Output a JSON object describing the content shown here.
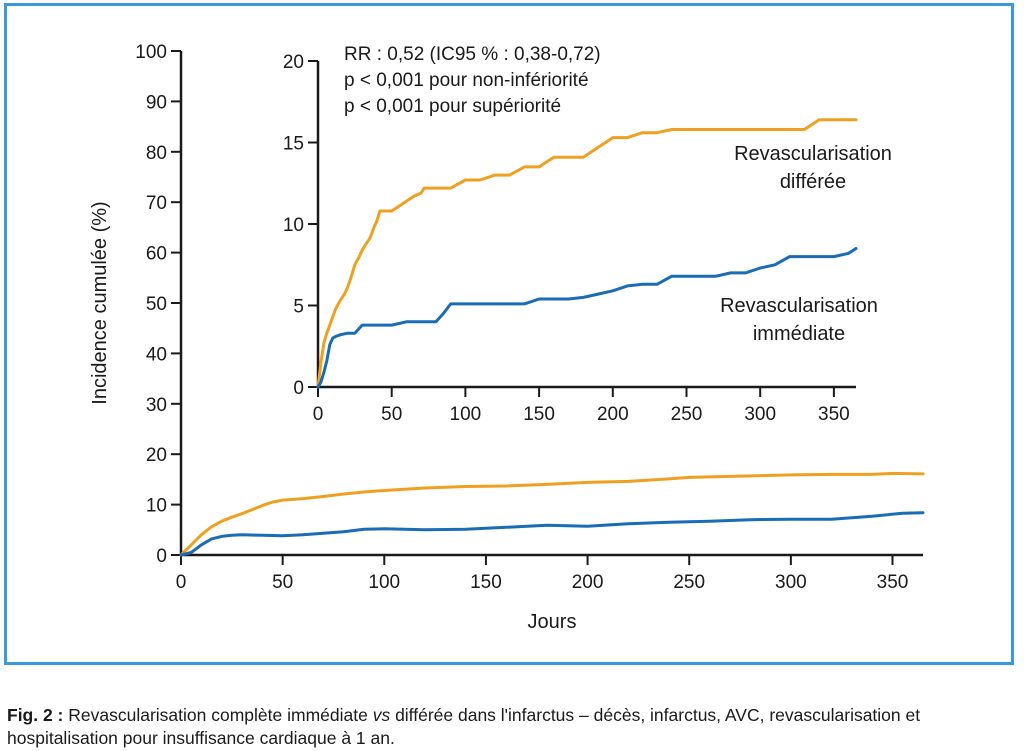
{
  "chart_data": [
    {
      "type": "line",
      "panel": "main",
      "xlabel": "Jours",
      "ylabel": "Incidence cumulée (%)",
      "xlim": [
        0,
        365
      ],
      "ylim": [
        0,
        100
      ],
      "xticks": [
        0,
        50,
        100,
        150,
        200,
        250,
        300,
        350
      ],
      "yticks": [
        0,
        10,
        20,
        30,
        40,
        50,
        60,
        70,
        80,
        90,
        100
      ],
      "series": [
        {
          "color": "#f0a020",
          "x": [
            0,
            5,
            10,
            15,
            20,
            25,
            30,
            35,
            40,
            45,
            50,
            60,
            70,
            80,
            90,
            100,
            120,
            140,
            160,
            180,
            200,
            220,
            240,
            250,
            270,
            300,
            320,
            340,
            350,
            365
          ],
          "y": [
            0,
            2,
            4,
            5.6,
            6.7,
            7.5,
            8.2,
            9,
            9.8,
            10.5,
            10.9,
            11.2,
            11.6,
            12.1,
            12.5,
            12.8,
            13.3,
            13.6,
            13.7,
            14.0,
            14.4,
            14.6,
            15.1,
            15.4,
            15.6,
            15.9,
            16.0,
            16.0,
            16.2,
            16.1
          ]
        },
        {
          "color": "#1a6cb5",
          "x": [
            0,
            5,
            10,
            15,
            20,
            25,
            30,
            40,
            50,
            60,
            70,
            80,
            90,
            100,
            120,
            140,
            160,
            180,
            200,
            220,
            240,
            260,
            280,
            300,
            320,
            340,
            355,
            365
          ],
          "y": [
            0,
            0.5,
            2,
            3.2,
            3.7,
            3.9,
            4.0,
            3.9,
            3.8,
            4.0,
            4.3,
            4.6,
            5.1,
            5.2,
            5.0,
            5.1,
            5.5,
            5.9,
            5.7,
            6.2,
            6.5,
            6.7,
            7.0,
            7.1,
            7.1,
            7.7,
            8.3,
            8.4
          ]
        }
      ]
    },
    {
      "type": "line",
      "panel": "inset",
      "xlim": [
        0,
        365
      ],
      "ylim": [
        0,
        20
      ],
      "xticks": [
        0,
        50,
        100,
        150,
        200,
        250,
        300,
        350
      ],
      "yticks": [
        0,
        5,
        10,
        15,
        20
      ],
      "annotations": [
        "RR : 0,52 (IC95 % : 0,38-0,72)",
        "p < 0,001 pour non-infériorité",
        "p < 0,001 pour supériorité"
      ],
      "series": [
        {
          "name": "Revascularisation différée",
          "name_lines": [
            "Revascularisation",
            "différée"
          ],
          "color": "#f0a020",
          "x": [
            0,
            2,
            4,
            6,
            8,
            10,
            12,
            15,
            18,
            20,
            22,
            25,
            28,
            30,
            32,
            35,
            36,
            38,
            40,
            42,
            45,
            50,
            55,
            60,
            65,
            70,
            72,
            75,
            80,
            85,
            90,
            100,
            110,
            120,
            130,
            140,
            150,
            160,
            170,
            180,
            190,
            200,
            210,
            220,
            230,
            240,
            250,
            260,
            270,
            280,
            290,
            300,
            310,
            320,
            330,
            340,
            350,
            365
          ],
          "y": [
            0,
            1.5,
            2.7,
            3.3,
            3.8,
            4.3,
            4.8,
            5.3,
            5.7,
            6.1,
            6.6,
            7.5,
            8.0,
            8.4,
            8.7,
            9.1,
            9.3,
            9.8,
            10.2,
            10.8,
            10.8,
            10.8,
            11.1,
            11.4,
            11.7,
            11.9,
            12.2,
            12.2,
            12.2,
            12.2,
            12.2,
            12.7,
            12.7,
            13.0,
            13.0,
            13.5,
            13.5,
            14.1,
            14.1,
            14.1,
            14.7,
            15.3,
            15.3,
            15.6,
            15.6,
            15.8,
            15.8,
            15.8,
            15.8,
            15.8,
            15.8,
            15.8,
            15.8,
            15.8,
            15.8,
            16.4,
            16.4,
            16.4
          ]
        },
        {
          "name": "Revascularisation immédiate",
          "name_lines": [
            "Revascularisation",
            "immédiate"
          ],
          "color": "#1a6cb5",
          "x": [
            0,
            2,
            4,
            6,
            8,
            10,
            12,
            15,
            20,
            25,
            30,
            40,
            50,
            60,
            70,
            80,
            85,
            90,
            100,
            120,
            140,
            150,
            160,
            170,
            180,
            190,
            200,
            210,
            220,
            230,
            240,
            250,
            260,
            270,
            280,
            290,
            300,
            310,
            320,
            330,
            340,
            350,
            360,
            365
          ],
          "y": [
            0,
            0.3,
            0.9,
            1.6,
            2.6,
            3.0,
            3.1,
            3.2,
            3.3,
            3.3,
            3.8,
            3.8,
            3.8,
            4.0,
            4.0,
            4.0,
            4.5,
            5.1,
            5.1,
            5.1,
            5.1,
            5.4,
            5.4,
            5.4,
            5.5,
            5.7,
            5.9,
            6.2,
            6.3,
            6.3,
            6.8,
            6.8,
            6.8,
            6.8,
            7.0,
            7.0,
            7.3,
            7.5,
            8.0,
            8.0,
            8.0,
            8.0,
            8.2,
            8.5
          ]
        }
      ]
    }
  ],
  "caption": {
    "label": "Fig. 2 :",
    "text_before": " Revascularisation complète immédiate ",
    "vs": "vs",
    "text_after": " différée dans l'infarctus – décès, infarctus, AVC, revascularisation et hospitalisation pour insuffisance cardiaque à 1 an."
  }
}
